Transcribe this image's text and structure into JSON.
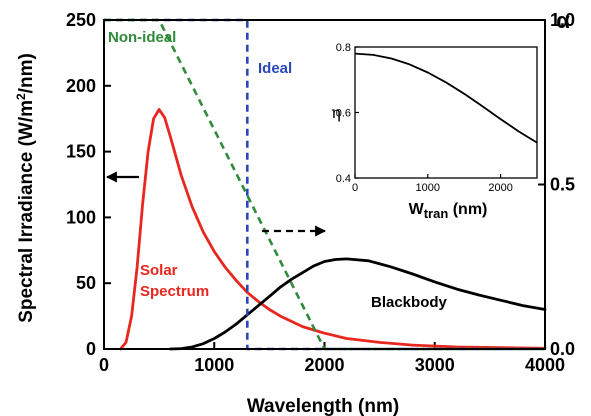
{
  "chart_data": [
    {
      "type": "line",
      "xlabel": "Wavelength (nm)",
      "ylabel": "Spectral Irradiance (W/m",
      "ylabel_sup": "2",
      "ylabel_tail": "/nm)",
      "y2label": "α",
      "xlim": [
        0,
        4000
      ],
      "ylim": [
        0,
        250
      ],
      "y2lim": [
        0,
        1.0
      ],
      "x_ticks": [
        "0",
        "1000",
        "2000",
        "3000",
        "4000"
      ],
      "y_ticks": [
        "0",
        "50",
        "100",
        "150",
        "200",
        "250"
      ],
      "y2_ticks": [
        "0.0",
        "0.5",
        "1.0"
      ],
      "grid": false,
      "series": [
        {
          "name": "Solar Spectrum",
          "label_line1": "Solar",
          "label_line2": "Spectrum",
          "axis": "left",
          "color": "#e8271f",
          "dash": "solid",
          "x": [
            150,
            200,
            250,
            300,
            350,
            400,
            450,
            500,
            550,
            600,
            700,
            800,
            900,
            1000,
            1100,
            1200,
            1300,
            1400,
            1500,
            1600,
            1800,
            2000,
            2200,
            2500,
            2800,
            3200,
            3600,
            4000
          ],
          "y": [
            0,
            5,
            25,
            62,
            110,
            150,
            175,
            182,
            176,
            162,
            132,
            108,
            89,
            74,
            62,
            52,
            43,
            36,
            30,
            25,
            17,
            12,
            8,
            5,
            3,
            1.5,
            1,
            0.5
          ]
        },
        {
          "name": "Blackbody",
          "axis": "left",
          "color": "#000000",
          "dash": "solid",
          "x": [
            600,
            700,
            800,
            900,
            1000,
            1100,
            1200,
            1300,
            1400,
            1500,
            1600,
            1700,
            1800,
            1900,
            2000,
            2100,
            2200,
            2400,
            2600,
            2800,
            3000,
            3200,
            3400,
            3600,
            3800,
            4000
          ],
          "y": [
            0,
            0.3,
            1.5,
            4,
            8,
            13,
            19,
            26,
            33,
            40,
            47,
            53,
            58,
            63,
            66.5,
            68,
            68.5,
            67,
            62.5,
            57,
            51,
            45.5,
            41,
            37,
            33,
            30
          ]
        },
        {
          "name": "Ideal",
          "axis": "right",
          "color": "#2a48b8",
          "dash": "dashed",
          "x": [
            0,
            1300,
            1300,
            4000
          ],
          "y": [
            1.0,
            1.0,
            0.0,
            0.0
          ]
        },
        {
          "name": "Non-ideal",
          "axis": "right",
          "color": "#2f8a3a",
          "dash": "dashed",
          "x": [
            0,
            500,
            2000,
            4000
          ],
          "y": [
            1.0,
            1.0,
            0.0,
            0.0
          ]
        }
      ]
    },
    {
      "type": "line",
      "xlabel": "W",
      "xlabel_sub": "tran",
      "xlabel_tail": " (nm)",
      "ylabel": "η",
      "xlim": [
        0,
        2500
      ],
      "ylim": [
        0.4,
        0.8
      ],
      "x_ticks": [
        "0",
        "1000",
        "2000"
      ],
      "y_ticks": [
        "0.4",
        "0.6",
        "0.8"
      ],
      "series": [
        {
          "color": "#000000",
          "x": [
            0,
            250,
            500,
            750,
            1000,
            1250,
            1500,
            1750,
            2000,
            2250,
            2500
          ],
          "y": [
            0.78,
            0.776,
            0.765,
            0.747,
            0.722,
            0.692,
            0.657,
            0.619,
            0.58,
            0.542,
            0.508
          ]
        }
      ]
    }
  ]
}
